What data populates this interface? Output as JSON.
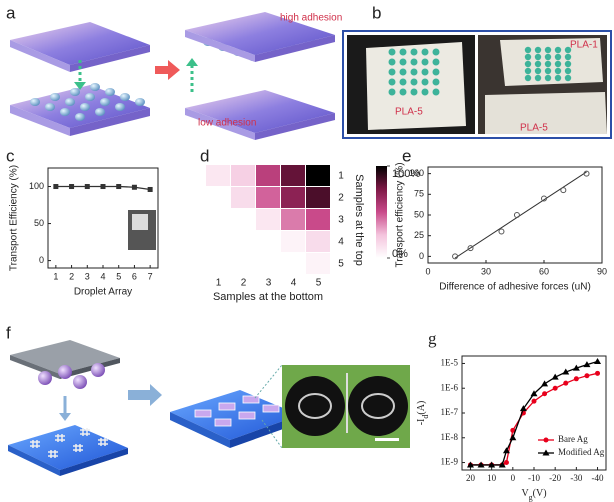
{
  "panels": {
    "a": {
      "label": "a",
      "high": "high adhesion",
      "low": "low adhesion"
    },
    "b": {
      "label": "b",
      "left_photo": "PLA-5",
      "right_top": "PLA-1",
      "right_bottom": "PLA-5"
    },
    "c": {
      "label": "c"
    },
    "d": {
      "label": "d"
    },
    "e": {
      "label": "e"
    },
    "f": {
      "label": "f"
    },
    "g": {
      "label": "g"
    }
  },
  "chart_data": [
    {
      "type": "line",
      "xlabel": "Droplet Array",
      "ylabel": "Transport Efficiency (%)",
      "x": [
        1,
        2,
        3,
        4,
        5,
        6,
        7
      ],
      "values": [
        100,
        100,
        100,
        100,
        100,
        99,
        96
      ],
      "color": "#333333",
      "marker": "square",
      "xlim": [
        0.5,
        7.5
      ],
      "xticks": [
        1,
        2,
        3,
        4,
        5,
        6,
        7
      ],
      "ylim": [
        -10,
        125
      ],
      "yticks": [
        0,
        50,
        100
      ]
    },
    {
      "type": "heatmap",
      "xlabel": "Samples at the bottom",
      "ylabel": "Samples at the top",
      "columns": [
        "1",
        "2",
        "3",
        "4",
        "5"
      ],
      "rows": [
        "1",
        "2",
        "3",
        "4",
        "5"
      ],
      "values": [
        [
          10,
          20,
          55,
          80,
          100
        ],
        [
          null,
          15,
          45,
          70,
          85
        ],
        [
          null,
          null,
          10,
          40,
          50
        ],
        [
          null,
          null,
          null,
          5,
          15
        ],
        [
          null,
          null,
          null,
          null,
          5
        ]
      ],
      "clim": [
        0,
        100
      ],
      "colormap": [
        "#ffffff",
        "#f4c4dd",
        "#c94a8a",
        "#7d1846",
        "#000000"
      ],
      "colorbar_ticks": [
        {
          "value": 100,
          "label": "100%"
        },
        {
          "value": 0,
          "label": "0%"
        }
      ]
    },
    {
      "type": "scatter",
      "xlabel": "Difference of adhesive forces (uN)",
      "ylabel": "Transport efficiency (%)",
      "x": [
        14,
        22,
        38,
        46,
        60,
        70,
        82
      ],
      "values": [
        0,
        10,
        30,
        50,
        70,
        80,
        100
      ],
      "color": "#555555",
      "fit_line": {
        "x": [
          14,
          82
        ],
        "y": [
          -2,
          102
        ]
      },
      "xlim": [
        0,
        90
      ],
      "xticks": [
        0,
        30,
        60,
        90
      ],
      "ylim": [
        -8,
        108
      ],
      "yticks": [
        0,
        25,
        50,
        75,
        100
      ]
    },
    {
      "type": "line",
      "log_y": true,
      "xlabel": "V",
      "xlabel_sub": "g",
      "xlabel_unit": "(V)",
      "ylabel": "-I",
      "ylabel_sub": "d",
      "ylabel_unit": "(A)",
      "x": [
        20,
        15,
        10,
        5,
        3,
        0,
        -5,
        -10,
        -15,
        -20,
        -25,
        -30,
        -35,
        -40
      ],
      "series": [
        {
          "name": "Bare Ag",
          "color": "#e8001c",
          "marker": "circle",
          "values": [
            8e-10,
            8e-10,
            8e-10,
            8e-10,
            1e-09,
            2e-08,
            1e-07,
            3e-07,
            6e-07,
            1e-06,
            1.6e-06,
            2.4e-06,
            3.2e-06,
            4e-06
          ]
        },
        {
          "name": "Modified Ag",
          "color": "#000000",
          "marker": "triangle",
          "values": [
            8e-10,
            8e-10,
            8e-10,
            8e-10,
            3e-09,
            1e-08,
            1.5e-07,
            6e-07,
            1.5e-06,
            2.8e-06,
            4.5e-06,
            6.5e-06,
            9e-06,
            1.2e-05
          ]
        }
      ],
      "legend": "lower right",
      "xlim": [
        24,
        -44
      ],
      "xticks": [
        20,
        10,
        0,
        -10,
        -20,
        -30,
        -40
      ],
      "ylim": [
        5e-10,
        2e-05
      ],
      "yticks": [
        {
          "value": 1e-09,
          "label": "1E-9"
        },
        {
          "value": 1e-08,
          "label": "1E-8"
        },
        {
          "value": 1e-07,
          "label": "1E-7"
        },
        {
          "value": 1e-06,
          "label": "1E-6"
        },
        {
          "value": 1e-05,
          "label": "1E-5"
        }
      ]
    }
  ]
}
